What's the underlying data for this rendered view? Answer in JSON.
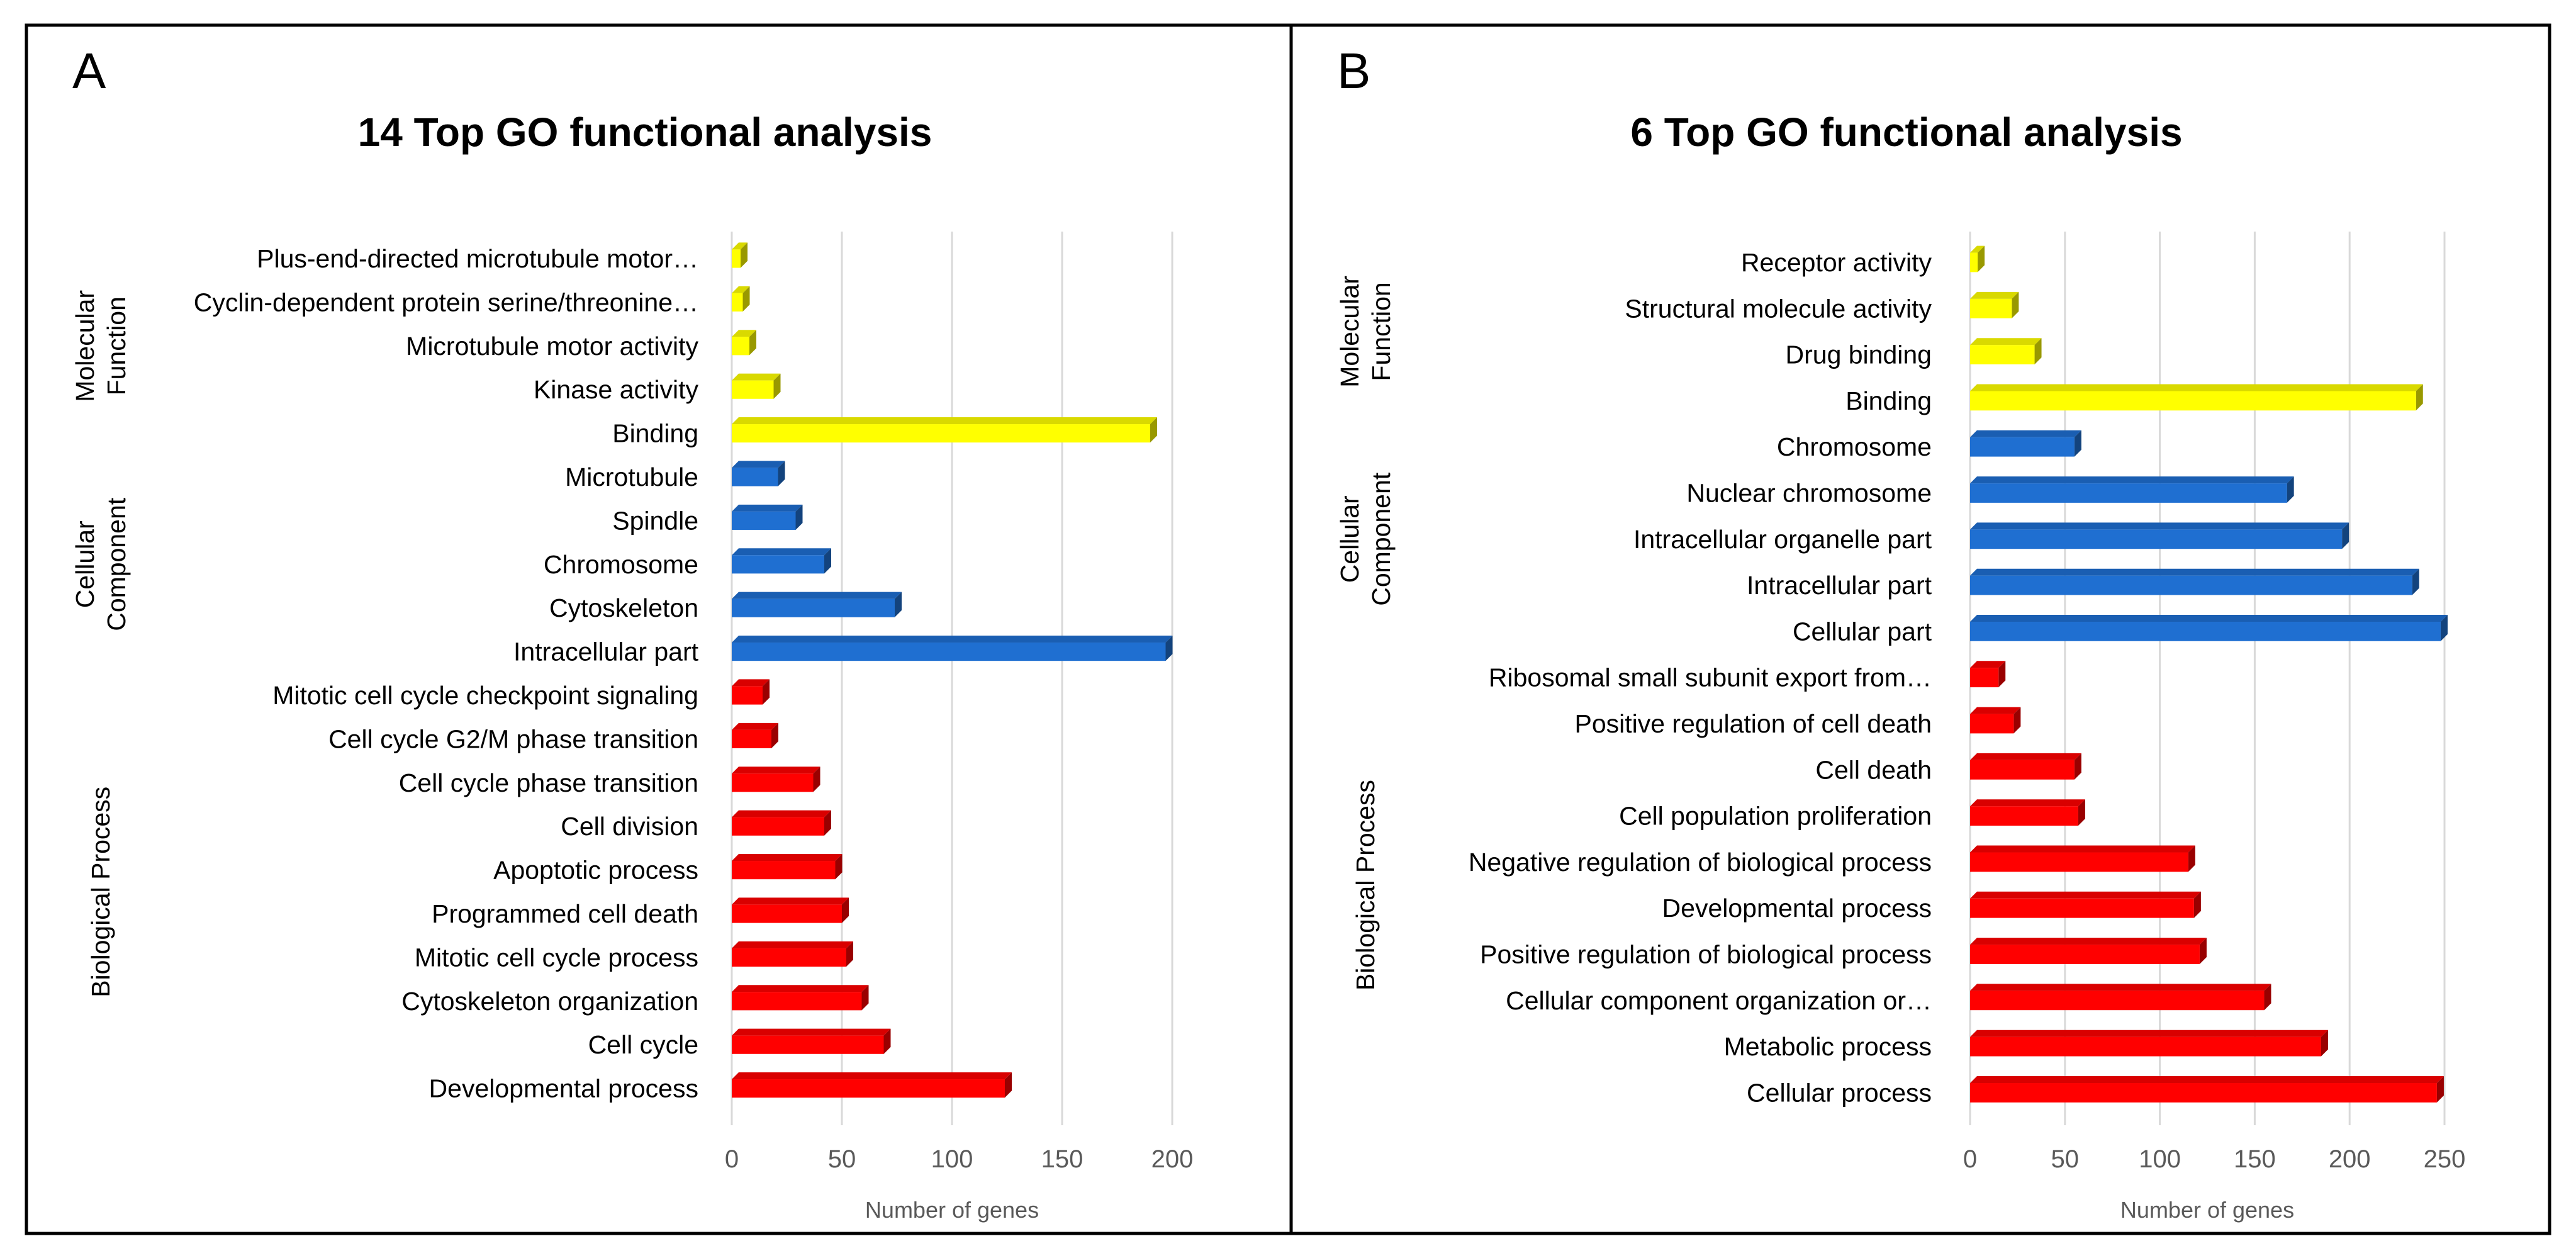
{
  "colors": {
    "molecular_function": "#ffff00",
    "cellular_component": "#1f6fd1",
    "biological_process": "#ff0000",
    "gridline": "#d9d9d9",
    "axis_text": "#595959"
  },
  "chart_data": [
    {
      "type": "bar",
      "panel": "A",
      "title": "14 Top GO functional analysis",
      "xlabel": "Number of genes",
      "ylabel": "",
      "xlim": [
        0,
        200
      ],
      "xticks": [
        "0",
        "50",
        "100",
        "150",
        "200"
      ],
      "groups": [
        {
          "name": "Molecular Function",
          "label_lines": [
            "Molecular",
            "Function"
          ],
          "color_key": "molecular_function",
          "categories": [
            "Plus-end-directed microtubule motor…",
            "Cyclin-dependent protein serine/threonine…",
            "Microtubule motor activity",
            "Kinase activity",
            "Binding"
          ],
          "values": [
            4,
            5,
            8,
            19,
            190
          ]
        },
        {
          "name": "Cellular Component",
          "label_lines": [
            "Cellular",
            "Component"
          ],
          "color_key": "cellular_component",
          "categories": [
            "Microtubule",
            "Spindle",
            "Chromosome",
            "Cytoskeleton",
            "Intracellular part"
          ],
          "values": [
            21,
            29,
            42,
            74,
            197
          ]
        },
        {
          "name": "Biological Process",
          "label_lines": [
            "Biological Process"
          ],
          "color_key": "biological_process",
          "categories": [
            "Mitotic cell cycle checkpoint signaling",
            "Cell cycle G2/M phase transition",
            "Cell cycle phase transition",
            "Cell division",
            "Apoptotic process",
            "Programmed cell death",
            "Mitotic cell cycle process",
            "Cytoskeleton organization",
            "Cell cycle",
            "Developmental process"
          ],
          "values": [
            14,
            18,
            37,
            42,
            47,
            50,
            52,
            59,
            69,
            124
          ]
        }
      ]
    },
    {
      "type": "bar",
      "panel": "B",
      "title": "6 Top GO functional analysis",
      "xlabel": "Number of genes",
      "ylabel": "",
      "xlim": [
        0,
        250
      ],
      "xticks": [
        "0",
        "50",
        "100",
        "150",
        "200",
        "250"
      ],
      "groups": [
        {
          "name": "Molecular Function",
          "label_lines": [
            "Molecular",
            "Function"
          ],
          "color_key": "molecular_function",
          "categories": [
            "Receptor activity",
            "Structural molecule activity",
            "Drug binding",
            "Binding"
          ],
          "values": [
            4,
            22,
            34,
            235
          ]
        },
        {
          "name": "Cellular Component",
          "label_lines": [
            "Cellular",
            "Component"
          ],
          "color_key": "cellular_component",
          "categories": [
            "Chromosome",
            "Nuclear chromosome",
            "Intracellular organelle part",
            "Intracellular part",
            "Cellular part"
          ],
          "values": [
            55,
            167,
            196,
            233,
            248
          ]
        },
        {
          "name": "Biological Process",
          "label_lines": [
            "Biological Process"
          ],
          "color_key": "biological_process",
          "categories": [
            "Ribosomal small subunit export from…",
            "Positive regulation of cell death",
            "Cell death",
            "Cell population proliferation",
            "Negative regulation of biological process",
            "Developmental process",
            "Positive regulation of biological process",
            "Cellular component organization or…",
            "Metabolic process",
            "Cellular process"
          ],
          "values": [
            15,
            23,
            55,
            57,
            115,
            118,
            121,
            155,
            185,
            246
          ]
        }
      ]
    }
  ]
}
